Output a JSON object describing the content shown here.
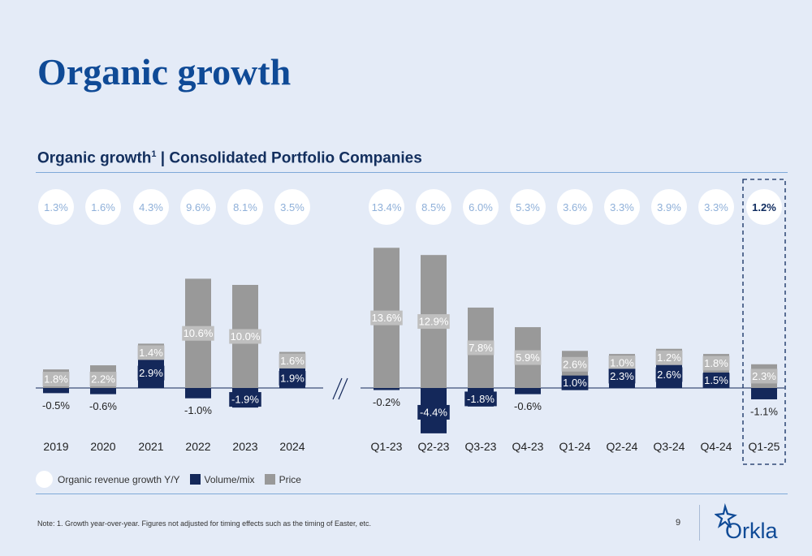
{
  "page": {
    "title": "Organic growth",
    "subtitle_main": "Organic growth",
    "subtitle_sup": "1",
    "subtitle_rest": " | Consolidated Portfolio Companies",
    "note": "Note: 1. Growth year-over-year. Figures not adjusted for timing effects such as the timing of Easter, etc.",
    "page_number": "9",
    "logo_text": "Orkla"
  },
  "legend": {
    "organic": "Organic revenue growth Y/Y",
    "volume": "Volume/mix",
    "price": "Price"
  },
  "colors": {
    "volume": "#14285a",
    "price": "#999999",
    "bubble_text": "#8fb0d9",
    "highlight_text": "#0d2a5e",
    "title": "#0f4a96"
  },
  "chart_data": {
    "type": "bar",
    "stacked": true,
    "categories": [
      "2019",
      "2020",
      "2021",
      "2022",
      "2023",
      "2024",
      "Q1-23",
      "Q2-23",
      "Q3-23",
      "Q4-23",
      "Q1-24",
      "Q2-24",
      "Q3-24",
      "Q4-24",
      "Q1-25"
    ],
    "series": [
      {
        "name": "Volume/mix",
        "values": [
          -0.5,
          -0.6,
          2.9,
          -1.0,
          -1.9,
          1.9,
          -0.2,
          -4.4,
          -1.8,
          -0.6,
          1.0,
          2.3,
          2.6,
          1.5,
          -1.1
        ],
        "labels": [
          "-0.5%",
          "-0.6%",
          "2.9%",
          "-1.0%",
          "-1.9%",
          "1.9%",
          "-0.2%",
          "-4.4%",
          "-1.8%",
          "-0.6%",
          "1.0%",
          "2.3%",
          "2.6%",
          "1.5%",
          "-1.1%"
        ]
      },
      {
        "name": "Price",
        "values": [
          1.8,
          2.2,
          1.4,
          10.6,
          10.0,
          1.6,
          13.6,
          12.9,
          7.8,
          5.9,
          2.6,
          1.0,
          1.2,
          1.8,
          2.3
        ],
        "labels": [
          "1.8%",
          "2.2%",
          "1.4%",
          "10.6%",
          "10.0%",
          "1.6%",
          "13.6%",
          "12.9%",
          "7.8%",
          "5.9%",
          "2.6%",
          "1.0%",
          "1.2%",
          "1.8%",
          "2.3%"
        ]
      }
    ],
    "organic_growth": {
      "name": "Organic revenue growth Y/Y",
      "values": [
        1.3,
        1.6,
        4.3,
        9.6,
        8.1,
        3.5,
        13.4,
        8.5,
        6.0,
        5.3,
        3.6,
        3.3,
        3.9,
        3.3,
        1.2
      ],
      "labels": [
        "1.3%",
        "1.6%",
        "4.3%",
        "9.6%",
        "8.1%",
        "3.5%",
        "13.4%",
        "8.5%",
        "6.0%",
        "5.3%",
        "3.6%",
        "3.3%",
        "3.9%",
        "3.3%",
        "1.2%"
      ]
    },
    "highlighted_category": "Q1-25",
    "axis_break_after": "2024",
    "legend_position": "bottom-left",
    "grid": false
  }
}
